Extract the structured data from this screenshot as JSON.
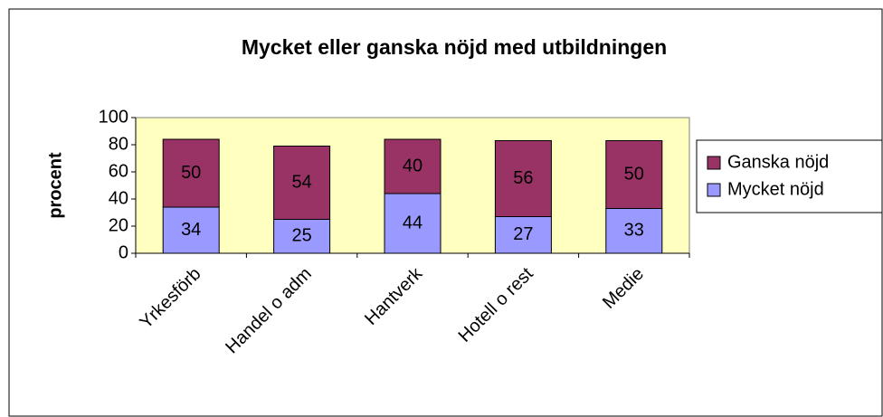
{
  "chart_data": {
    "type": "stacked_bar",
    "title": "Mycket eller ganska nöjd med utbildningen",
    "y_label": "procent",
    "categories": [
      "Yrkesförb",
      "Handel o adm",
      "Hantverk",
      "Hotell o rest",
      "Medie"
    ],
    "series": [
      {
        "name": "Mycket nöjd",
        "color": "#9999ff",
        "values": [
          34,
          25,
          44,
          27,
          33
        ]
      },
      {
        "name": "Ganska nöjd",
        "color": "#993366",
        "values": [
          50,
          54,
          40,
          56,
          50
        ]
      }
    ],
    "ylim": [
      0,
      100
    ],
    "yticks": [
      0,
      20,
      40,
      60,
      80,
      100
    ],
    "grid": false,
    "legend": "right"
  }
}
